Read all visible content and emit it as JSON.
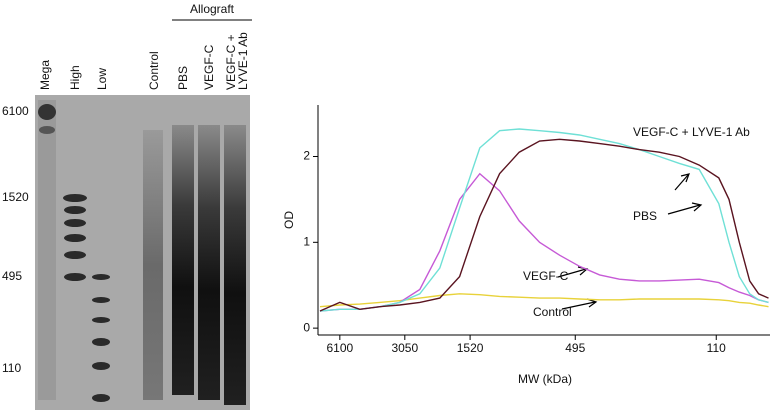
{
  "gel": {
    "group_label": "Allograft",
    "lanes": [
      "Mega",
      "High",
      "Low",
      "Control",
      "PBS",
      "VEGF-C",
      [
        "VEGF-C +",
        "LYVE-1 Ab"
      ]
    ],
    "markers": [
      6100,
      1520,
      495,
      110
    ]
  },
  "chart_data": {
    "type": "line",
    "x_label": "MW (kDa)",
    "y_label": "OD",
    "x": [
      7540,
      6100,
      4930,
      3980,
      3220,
      2600,
      2100,
      1700,
      1370,
      1110,
      900,
      724,
      585,
      473,
      382,
      309,
      250,
      202,
      163,
      132,
      107,
      96,
      86,
      77,
      70,
      63
    ],
    "xlim": [
      7700,
      62
    ],
    "xscale": "log",
    "xticks": [
      6100,
      3050,
      1520,
      495,
      110
    ],
    "ylim": [
      -0.08,
      2.6
    ],
    "yticks": [
      0,
      1,
      2
    ],
    "series": [
      {
        "name": "Control",
        "color": "#e8d23a",
        "values": [
          0.25,
          0.27,
          0.28,
          0.3,
          0.32,
          0.35,
          0.38,
          0.4,
          0.39,
          0.37,
          0.36,
          0.35,
          0.35,
          0.34,
          0.33,
          0.33,
          0.34,
          0.34,
          0.34,
          0.34,
          0.33,
          0.32,
          0.3,
          0.29,
          0.27,
          0.25
        ]
      },
      {
        "name": "VEGF-C",
        "color": "#c65ad6",
        "values": [
          0.2,
          0.22,
          0.22,
          0.25,
          0.3,
          0.45,
          0.9,
          1.5,
          1.8,
          1.6,
          1.25,
          1.0,
          0.85,
          0.72,
          0.62,
          0.57,
          0.55,
          0.55,
          0.56,
          0.57,
          0.53,
          0.47,
          0.42,
          0.38,
          0.33,
          0.3
        ]
      },
      {
        "name": "PBS",
        "color": "#6fe0d6",
        "values": [
          0.2,
          0.22,
          0.22,
          0.25,
          0.3,
          0.4,
          0.7,
          1.4,
          2.1,
          2.3,
          2.32,
          2.3,
          2.28,
          2.25,
          2.2,
          2.15,
          2.08,
          2.0,
          1.92,
          1.85,
          1.45,
          1.0,
          0.6,
          0.4,
          0.33,
          0.3
        ]
      },
      {
        "name": "VEGF-C + LYVE-1 Ab",
        "color": "#5a1420",
        "values": [
          0.2,
          0.3,
          0.22,
          0.25,
          0.27,
          0.3,
          0.35,
          0.6,
          1.3,
          1.8,
          2.05,
          2.18,
          2.2,
          2.18,
          2.15,
          2.12,
          2.08,
          2.05,
          2.0,
          1.9,
          1.75,
          1.5,
          1.0,
          0.55,
          0.4,
          0.35
        ]
      }
    ]
  }
}
